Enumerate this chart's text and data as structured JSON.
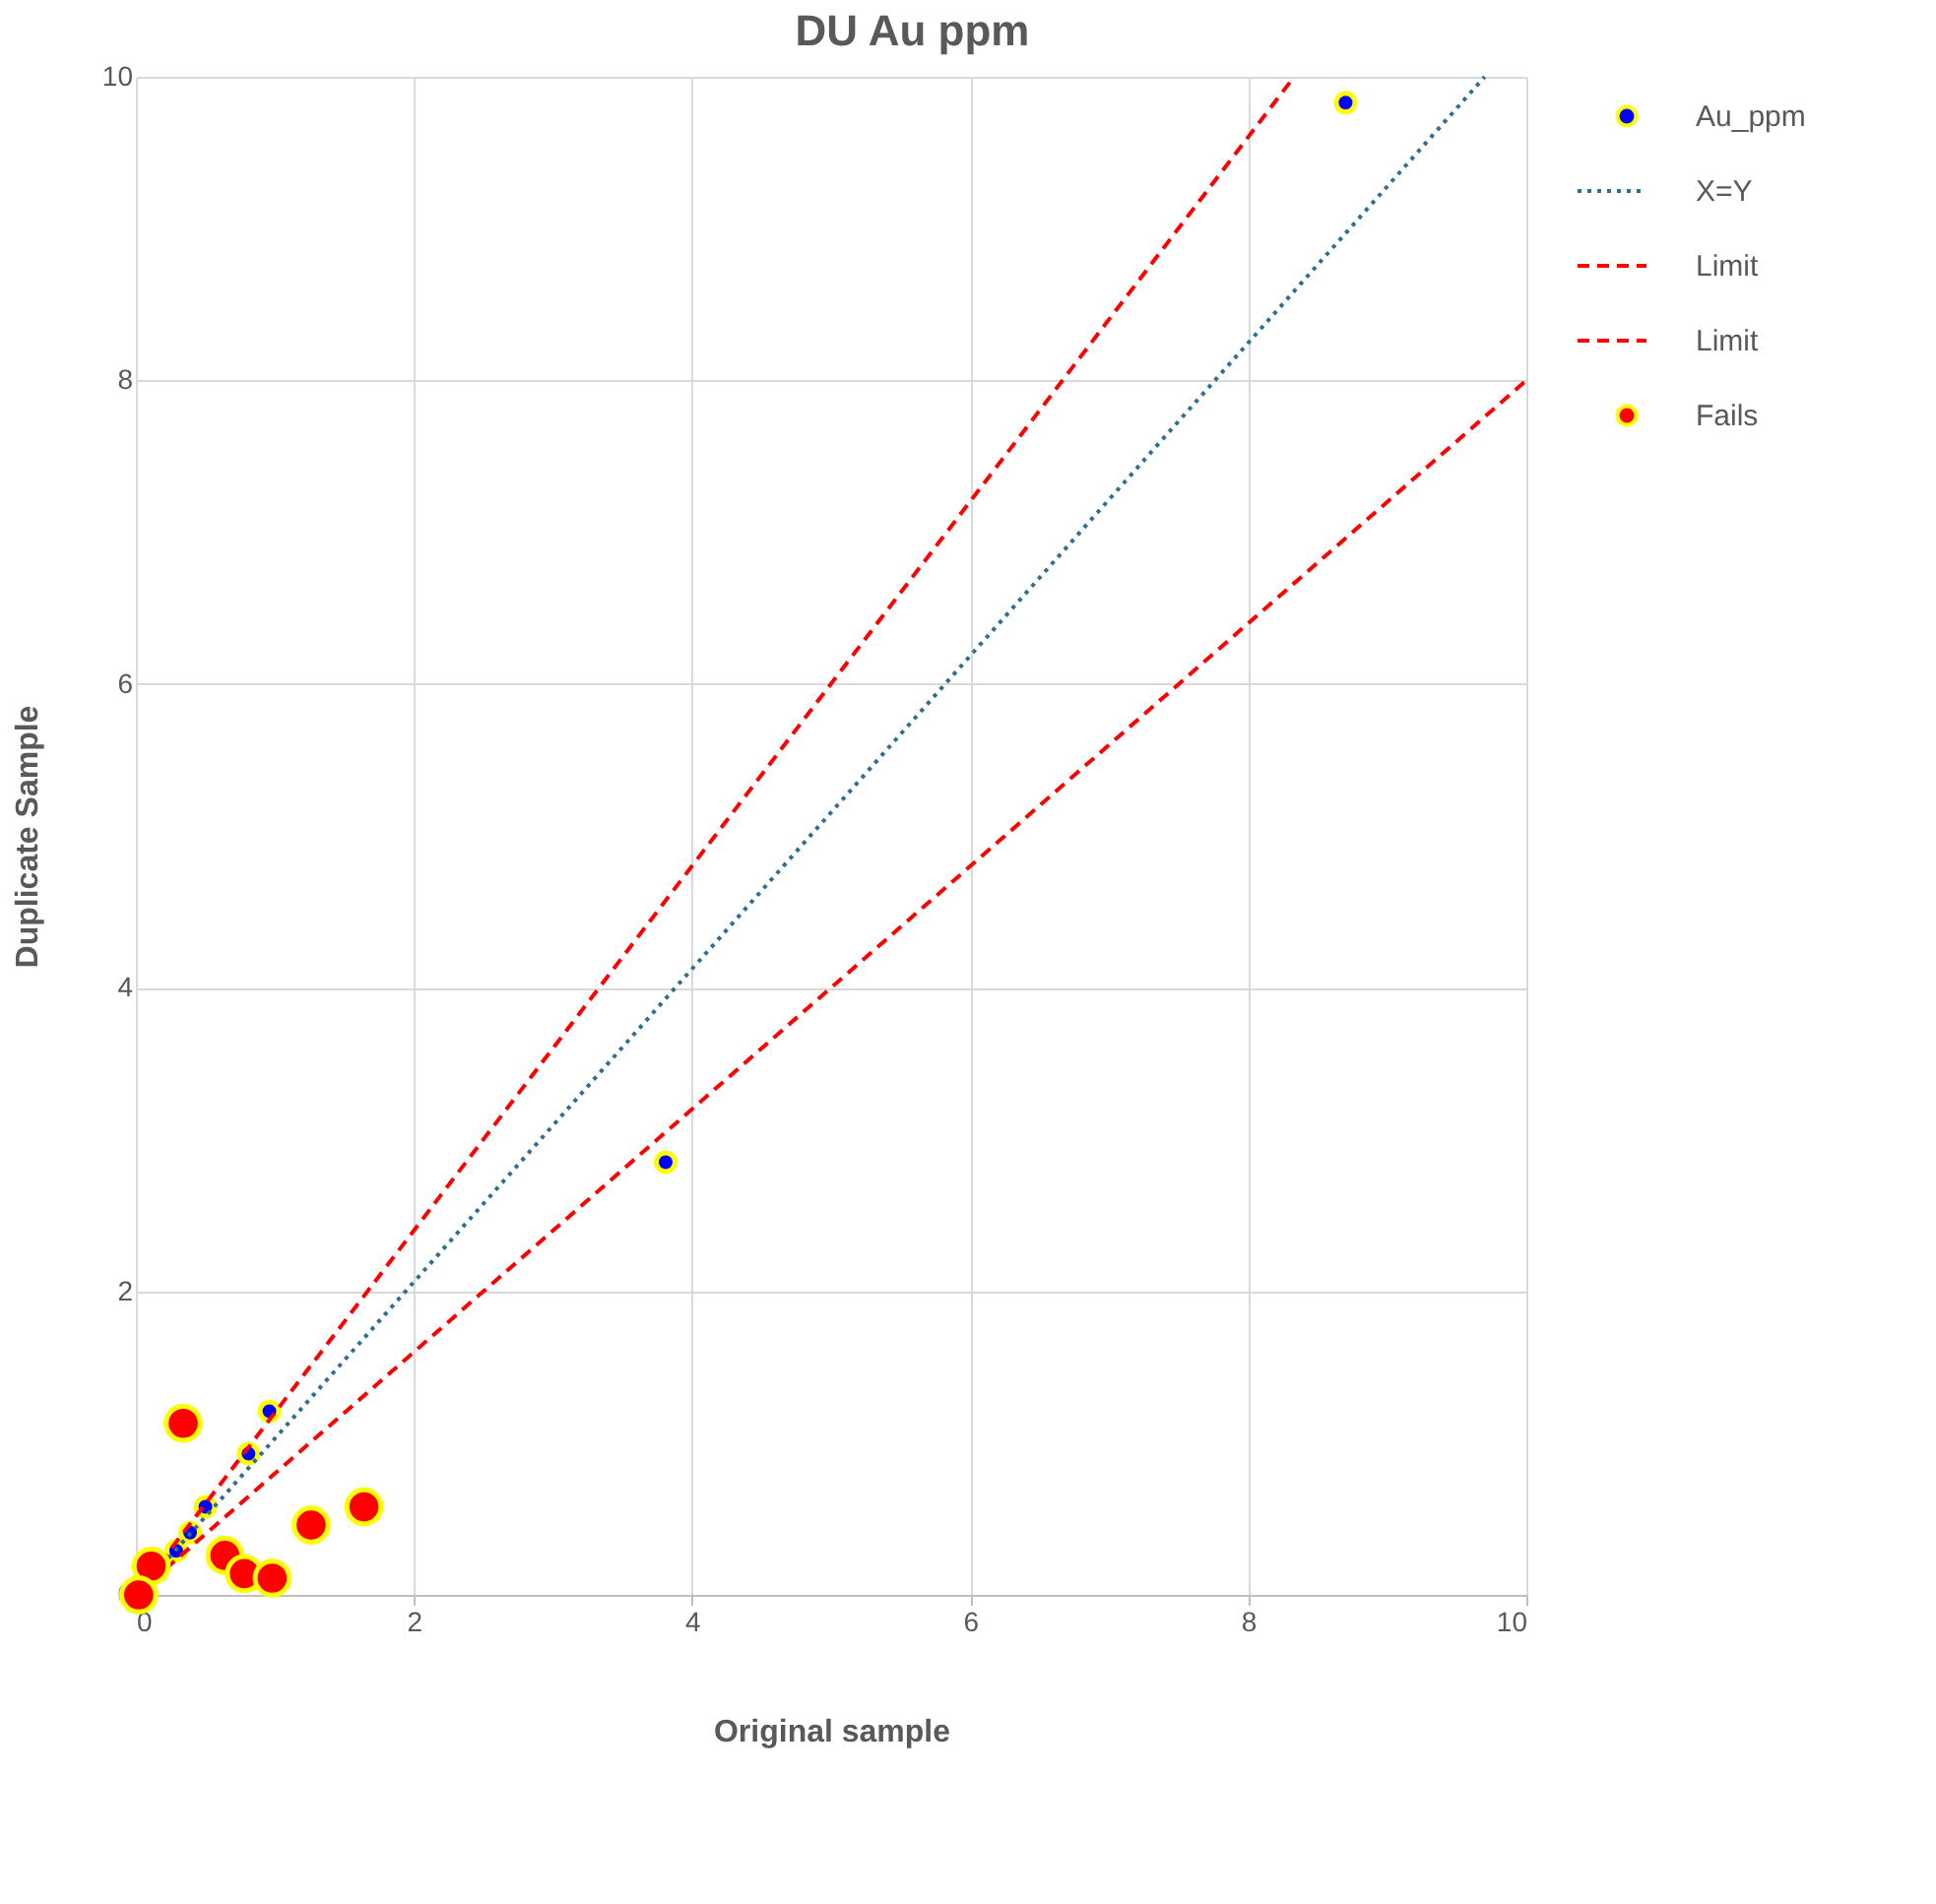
{
  "chart_data": {
    "type": "scatter",
    "title": "DU Au ppm",
    "xlabel": "Original sample",
    "ylabel": "Duplicate Sample",
    "xlim": [
      0,
      10
    ],
    "ylim": [
      0,
      10
    ],
    "xticks": [
      0,
      2,
      4,
      6,
      8,
      10
    ],
    "yticks": [
      0,
      2,
      4,
      6,
      8,
      10
    ],
    "grid": true,
    "legend": "right",
    "series": [
      {
        "name": "Au_ppm",
        "marker": "circle",
        "color": "#0000ff",
        "x": [
          0.96,
          0.81,
          0.5,
          0.39,
          0.29,
          3.81,
          8.7
        ],
        "values": [
          1.21,
          0.93,
          0.58,
          0.41,
          0.29,
          2.85,
          9.83
        ]
      },
      {
        "name": "X=Y",
        "type": "line",
        "line_style": "dotted",
        "color": "#2e6e8e",
        "x": [
          0,
          9.7
        ],
        "values": [
          0,
          10
        ]
      },
      {
        "name": "Limit",
        "type": "line",
        "line_style": "dashed",
        "color": "#ff0000",
        "x": [
          0,
          8.33
        ],
        "values": [
          0,
          10
        ]
      },
      {
        "name": "Limit",
        "type": "line",
        "line_style": "dashed",
        "color": "#ff0000",
        "x": [
          0,
          10
        ],
        "values": [
          0,
          8
        ]
      },
      {
        "name": "Fails",
        "marker": "circle",
        "color": "#ff0000",
        "x": [
          0.34,
          0.11,
          0.02,
          0.64,
          0.78,
          0.98,
          1.26,
          1.64
        ],
        "values": [
          1.13,
          0.19,
          0.0,
          0.26,
          0.14,
          0.11,
          0.46,
          0.58
        ]
      }
    ]
  }
}
